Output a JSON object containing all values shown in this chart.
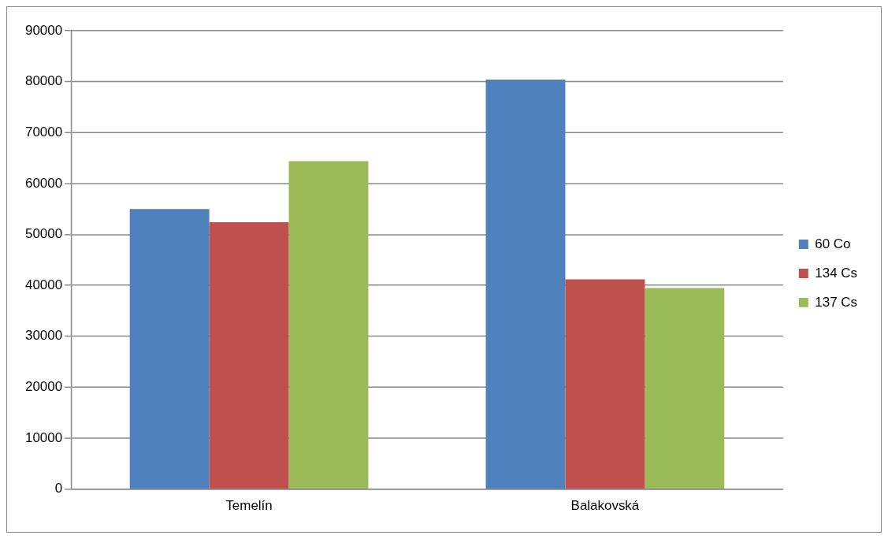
{
  "chart_data": {
    "type": "bar",
    "categories": [
      "Temelín",
      "Balakovská"
    ],
    "series": [
      {
        "name": "60 Co",
        "color": "#4f81bd",
        "values": [
          55000,
          80400
        ]
      },
      {
        "name": "134 Cs",
        "color": "#c0504d",
        "values": [
          52400,
          41200
        ]
      },
      {
        "name": "137 Cs",
        "color": "#9bbb59",
        "values": [
          64400,
          39500
        ]
      }
    ],
    "ylim": [
      0,
      90000
    ],
    "yticks": [
      0,
      10000,
      20000,
      30000,
      40000,
      50000,
      60000,
      70000,
      80000,
      90000
    ],
    "grid": "y",
    "legend": "right"
  }
}
